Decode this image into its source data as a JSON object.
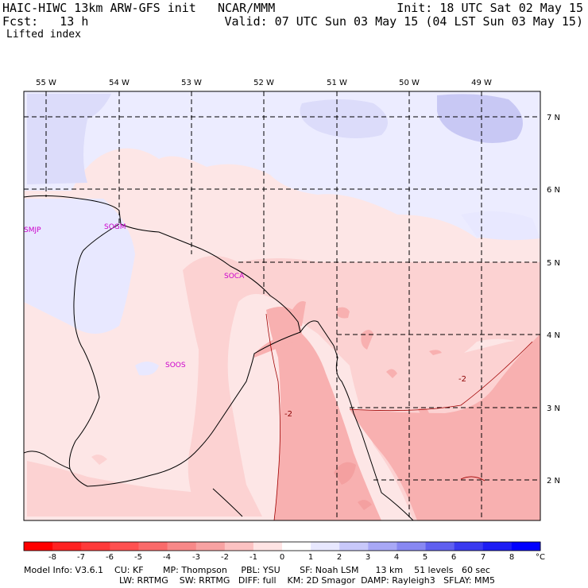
{
  "header": {
    "title": "HAIC-HIWC 13km ARW-GFS init",
    "center": "NCAR/MMM",
    "init": "Init: 18 UTC Sat 02 May 15",
    "forecast": "Fcst:   13 h",
    "valid": "Valid: 07 UTC Sun 03 May 15 (04 LST Sun 03 May 15)",
    "field": "Lifted index"
  },
  "longitude_labels": [
    "55 W",
    "54 W",
    "53 W",
    "52 W",
    "51 W",
    "50 W",
    "49 W"
  ],
  "latitude_labels": [
    "7 N",
    "6 N",
    "5 N",
    "4 N",
    "3 N",
    "2 N"
  ],
  "stations": [
    "SMJP",
    "SOGM",
    "SOCA",
    "SOOS"
  ],
  "contour_labels": [
    "-2",
    "-2"
  ],
  "colorbar": {
    "ticks": [
      "-8",
      "-7",
      "-6",
      "-5",
      "-4",
      "-3",
      "-2",
      "-1",
      "0",
      "1",
      "2",
      "3",
      "4",
      "5",
      "6",
      "7",
      "8"
    ],
    "unit": "°C",
    "colors": [
      "#ff0000",
      "#ff2222",
      "#ff3a3a",
      "#ff5050",
      "#fa6a6a",
      "#f88888",
      "#f8a2a2",
      "#fcc2c2",
      "#ffe4e4",
      "#ffffff",
      "#e8e8ff",
      "#c8c8fa",
      "#a8a8f6",
      "#8888f2",
      "#6060f0",
      "#3a3af0",
      "#1c1cf4",
      "#0000ff"
    ]
  },
  "footer": {
    "line1": "Model Info: V3.6.1    CU: KF       MP: Thompson     PBL: YSU       SF: Noah LSM      13 km    51 levels   60 sec",
    "line2": "LW: RRTMG    SW: RRTMG   DIFF: full    KM: 2D Smagor  DAMP: Rayleigh3   SFLAY: MM5"
  },
  "colors": {
    "station": "#cc00cc",
    "contour_label": "#8b0000"
  }
}
